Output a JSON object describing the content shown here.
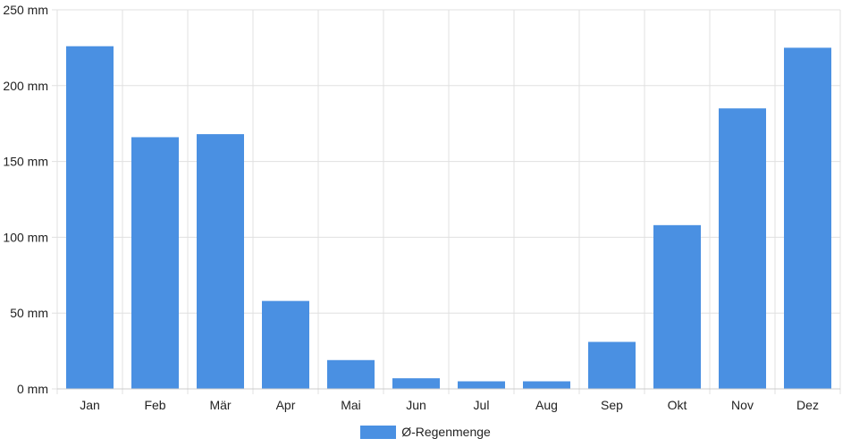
{
  "chart_data": {
    "type": "bar",
    "categories": [
      "Jan",
      "Feb",
      "Mär",
      "Apr",
      "Mai",
      "Jun",
      "Jul",
      "Aug",
      "Sep",
      "Okt",
      "Nov",
      "Dez"
    ],
    "series": [
      {
        "name": "Ø-Regenmenge",
        "values": [
          226,
          166,
          168,
          58,
          19,
          7,
          5,
          5,
          31,
          108,
          185,
          225
        ]
      }
    ],
    "ylim": [
      0,
      250
    ],
    "yticks": [
      0,
      50,
      100,
      150,
      200,
      250
    ],
    "y_unit": "mm",
    "grid": true,
    "legend_position": "bottom",
    "bar_color": "#4a90e2",
    "grid_color": "#e0e0e0"
  }
}
